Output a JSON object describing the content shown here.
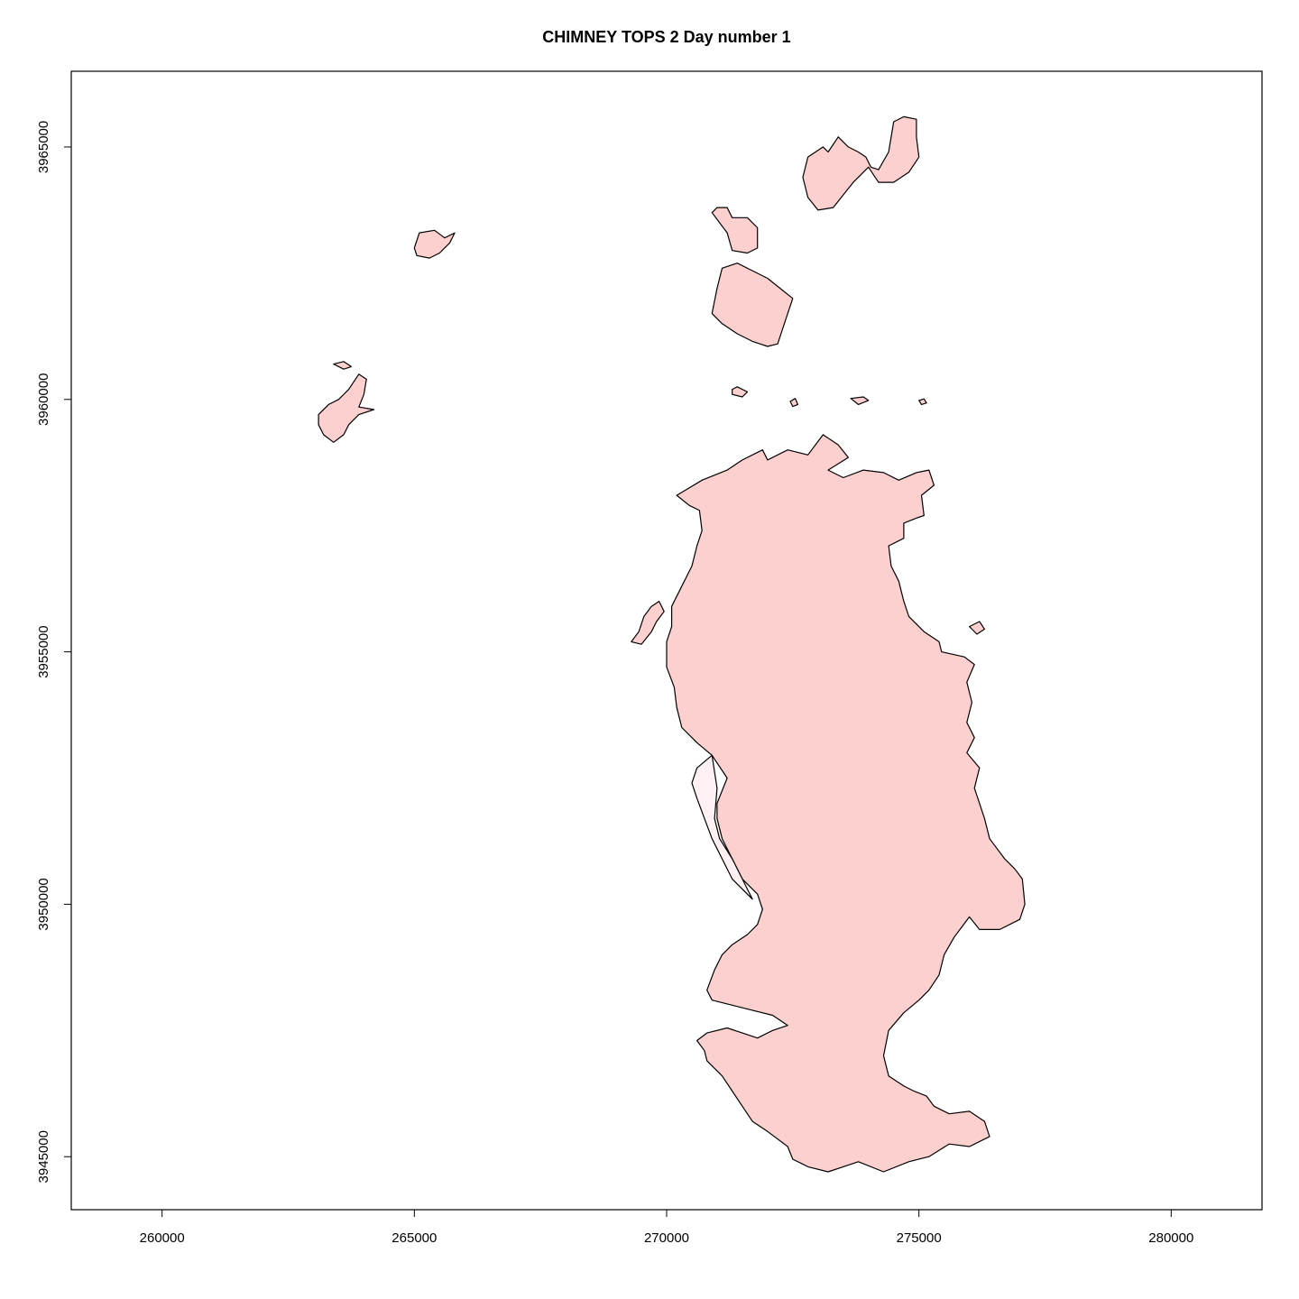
{
  "title": "CHIMNEY TOPS 2   Day number 1",
  "colors": {
    "fill": "#fdd0d0",
    "fill_light": "#fff1f1",
    "stroke": "#000000"
  },
  "chart_data": {
    "type": "map",
    "title": "CHIMNEY TOPS 2   Day number 1",
    "xlabel": "",
    "ylabel": "",
    "xlim": [
      258200,
      281800
    ],
    "ylim": [
      3943950,
      3966500
    ],
    "xticks": [
      260000,
      265000,
      270000,
      275000,
      280000
    ],
    "yticks": [
      3945000,
      3950000,
      3955000,
      3960000,
      3965000
    ],
    "xtick_labels": [
      "260000",
      "265000",
      "270000",
      "275000",
      "280000"
    ],
    "ytick_labels": [
      "3945000",
      "3950000",
      "3955000",
      "3960000",
      "3965000"
    ],
    "grid": false,
    "polygons": [
      {
        "name": "main-burn-area",
        "fill": "fill",
        "coords": [
          [
            270200,
            3958100
          ],
          [
            270700,
            3958400
          ],
          [
            271200,
            3958600
          ],
          [
            271500,
            3958800
          ],
          [
            271900,
            3959000
          ],
          [
            272000,
            3958800
          ],
          [
            272400,
            3959000
          ],
          [
            272800,
            3958900
          ],
          [
            273100,
            3959300
          ],
          [
            273400,
            3959100
          ],
          [
            273600,
            3958850
          ],
          [
            273200,
            3958600
          ],
          [
            273500,
            3958450
          ],
          [
            273900,
            3958600
          ],
          [
            274300,
            3958550
          ],
          [
            274600,
            3958400
          ],
          [
            274950,
            3958550
          ],
          [
            275200,
            3958600
          ],
          [
            275300,
            3958300
          ],
          [
            275050,
            3958100
          ],
          [
            275100,
            3957700
          ],
          [
            274950,
            3957650
          ],
          [
            274700,
            3957550
          ],
          [
            274700,
            3957250
          ],
          [
            274400,
            3957100
          ],
          [
            274450,
            3956700
          ],
          [
            274600,
            3956400
          ],
          [
            274700,
            3956000
          ],
          [
            274800,
            3955700
          ],
          [
            275100,
            3955400
          ],
          [
            275400,
            3955200
          ],
          [
            275450,
            3955000
          ],
          [
            275900,
            3954900
          ],
          [
            276100,
            3954750
          ],
          [
            275950,
            3954400
          ],
          [
            276050,
            3954000
          ],
          [
            275950,
            3953600
          ],
          [
            276100,
            3953300
          ],
          [
            275950,
            3953000
          ],
          [
            276200,
            3952700
          ],
          [
            276100,
            3952300
          ],
          [
            276300,
            3951700
          ],
          [
            276400,
            3951300
          ],
          [
            276700,
            3950900
          ],
          [
            276900,
            3950700
          ],
          [
            277050,
            3950500
          ],
          [
            277100,
            3950000
          ],
          [
            277000,
            3949700
          ],
          [
            276600,
            3949500
          ],
          [
            276200,
            3949500
          ],
          [
            276000,
            3949750
          ],
          [
            275850,
            3949550
          ],
          [
            275700,
            3949350
          ],
          [
            275500,
            3949000
          ],
          [
            275400,
            3948600
          ],
          [
            275200,
            3948300
          ],
          [
            275000,
            3948100
          ],
          [
            274700,
            3947850
          ],
          [
            274400,
            3947500
          ],
          [
            274300,
            3947000
          ],
          [
            274400,
            3946600
          ],
          [
            274700,
            3946400
          ],
          [
            274900,
            3946300
          ],
          [
            275150,
            3946200
          ],
          [
            275300,
            3946000
          ],
          [
            275600,
            3945850
          ],
          [
            276000,
            3945900
          ],
          [
            276300,
            3945700
          ],
          [
            276400,
            3945400
          ],
          [
            276000,
            3945200
          ],
          [
            275600,
            3945250
          ],
          [
            275200,
            3945000
          ],
          [
            274800,
            3944900
          ],
          [
            274300,
            3944700
          ],
          [
            273800,
            3944900
          ],
          [
            273500,
            3944800
          ],
          [
            273200,
            3944700
          ],
          [
            272800,
            3944800
          ],
          [
            272500,
            3944950
          ],
          [
            272400,
            3945200
          ],
          [
            272000,
            3945500
          ],
          [
            271700,
            3945700
          ],
          [
            271500,
            3946000
          ],
          [
            271300,
            3946300
          ],
          [
            271100,
            3946600
          ],
          [
            270800,
            3946900
          ],
          [
            270750,
            3947100
          ],
          [
            270600,
            3947300
          ],
          [
            270800,
            3947450
          ],
          [
            271200,
            3947550
          ],
          [
            271500,
            3947450
          ],
          [
            271800,
            3947350
          ],
          [
            272100,
            3947500
          ],
          [
            272400,
            3947600
          ],
          [
            272100,
            3947800
          ],
          [
            271700,
            3947900
          ],
          [
            271300,
            3948000
          ],
          [
            270900,
            3948100
          ],
          [
            270800,
            3948300
          ],
          [
            270950,
            3948700
          ],
          [
            271100,
            3949000
          ],
          [
            271300,
            3949200
          ],
          [
            271600,
            3949400
          ],
          [
            271800,
            3949600
          ],
          [
            271900,
            3949900
          ],
          [
            271800,
            3950200
          ],
          [
            271500,
            3950500
          ],
          [
            271300,
            3950900
          ],
          [
            271100,
            3951300
          ],
          [
            271000,
            3951700
          ],
          [
            271000,
            3952000
          ],
          [
            271200,
            3952500
          ],
          [
            270900,
            3952950
          ],
          [
            270600,
            3953200
          ],
          [
            270300,
            3953500
          ],
          [
            270200,
            3953900
          ],
          [
            270150,
            3954300
          ],
          [
            270000,
            3954700
          ],
          [
            270000,
            3955200
          ],
          [
            270100,
            3955500
          ],
          [
            270100,
            3955900
          ],
          [
            270300,
            3956300
          ],
          [
            270500,
            3956700
          ],
          [
            270600,
            3957100
          ],
          [
            270700,
            3957400
          ],
          [
            270650,
            3957800
          ],
          [
            270450,
            3957900
          ],
          [
            270200,
            3958100
          ]
        ]
      },
      {
        "name": "west-strip",
        "fill": "fill_light",
        "coords": [
          [
            270600,
            3952700
          ],
          [
            270900,
            3952950
          ],
          [
            271000,
            3952300
          ],
          [
            270950,
            3951700
          ],
          [
            271050,
            3951300
          ],
          [
            271300,
            3950900
          ],
          [
            271500,
            3950500
          ],
          [
            271700,
            3950100
          ],
          [
            271300,
            3950500
          ],
          [
            271100,
            3950900
          ],
          [
            270900,
            3951300
          ],
          [
            270750,
            3951700
          ],
          [
            270600,
            3952100
          ],
          [
            270500,
            3952400
          ],
          [
            270600,
            3952700
          ]
        ]
      },
      {
        "name": "north-tail",
        "fill": "fill",
        "coords": [
          [
            271300,
            3960200
          ],
          [
            271400,
            3960250
          ],
          [
            271600,
            3960150
          ],
          [
            271500,
            3960050
          ],
          [
            271300,
            3960100
          ],
          [
            271300,
            3960200
          ]
        ]
      },
      {
        "name": "north-islet-1",
        "fill": "fill",
        "coords": [
          [
            272450,
            3959960
          ],
          [
            272550,
            3960020
          ],
          [
            272600,
            3959900
          ],
          [
            272500,
            3959860
          ],
          [
            272450,
            3959960
          ]
        ]
      },
      {
        "name": "north-islet-2",
        "fill": "fill",
        "coords": [
          [
            273650,
            3960020
          ],
          [
            273900,
            3960050
          ],
          [
            274000,
            3959980
          ],
          [
            273800,
            3959900
          ],
          [
            273650,
            3960020
          ]
        ]
      },
      {
        "name": "north-islet-3",
        "fill": "fill",
        "coords": [
          [
            275000,
            3959980
          ],
          [
            275100,
            3960010
          ],
          [
            275150,
            3959930
          ],
          [
            275050,
            3959900
          ],
          [
            275000,
            3959980
          ]
        ]
      },
      {
        "name": "west-fringe-patch",
        "fill": "fill",
        "coords": [
          [
            269300,
            3955200
          ],
          [
            269450,
            3955400
          ],
          [
            269550,
            3955700
          ],
          [
            269700,
            3955900
          ],
          [
            269850,
            3956000
          ],
          [
            269950,
            3955800
          ],
          [
            269800,
            3955600
          ],
          [
            269700,
            3955400
          ],
          [
            269500,
            3955150
          ],
          [
            269300,
            3955200
          ]
        ]
      },
      {
        "name": "east-fringe-patch",
        "fill": "fill",
        "coords": [
          [
            276000,
            3955500
          ],
          [
            276200,
            3955600
          ],
          [
            276300,
            3955450
          ],
          [
            276150,
            3955350
          ],
          [
            276000,
            3955500
          ]
        ]
      },
      {
        "name": "chimney-tops-patch",
        "fill": "fill",
        "coords": [
          [
            270900,
            3961700
          ],
          [
            271000,
            3962200
          ],
          [
            271100,
            3962600
          ],
          [
            271400,
            3962700
          ],
          [
            271700,
            3962550
          ],
          [
            272000,
            3962400
          ],
          [
            272250,
            3962200
          ],
          [
            272500,
            3962000
          ],
          [
            272400,
            3961700
          ],
          [
            272300,
            3961400
          ],
          [
            272200,
            3961100
          ],
          [
            272000,
            3961050
          ],
          [
            271700,
            3961150
          ],
          [
            271400,
            3961300
          ],
          [
            271100,
            3961500
          ],
          [
            270900,
            3961700
          ]
        ]
      },
      {
        "name": "chimney-tops-upper",
        "fill": "fill",
        "coords": [
          [
            271000,
            3963800
          ],
          [
            271200,
            3963800
          ],
          [
            271300,
            3963600
          ],
          [
            271600,
            3963600
          ],
          [
            271800,
            3963400
          ],
          [
            271800,
            3963000
          ],
          [
            271600,
            3962900
          ],
          [
            271300,
            3962950
          ],
          [
            271200,
            3963300
          ],
          [
            270900,
            3963700
          ],
          [
            271000,
            3963800
          ]
        ]
      },
      {
        "name": "northeast-patch",
        "fill": "fill",
        "coords": [
          [
            272700,
            3964400
          ],
          [
            272800,
            3964800
          ],
          [
            273100,
            3965000
          ],
          [
            273200,
            3964900
          ],
          [
            273400,
            3965200
          ],
          [
            273600,
            3965000
          ],
          [
            273800,
            3964900
          ],
          [
            273950,
            3964800
          ],
          [
            274050,
            3964600
          ],
          [
            274200,
            3964550
          ],
          [
            274400,
            3964900
          ],
          [
            274500,
            3965500
          ],
          [
            274700,
            3965600
          ],
          [
            274950,
            3965550
          ],
          [
            274950,
            3965200
          ],
          [
            275000,
            3964800
          ],
          [
            274800,
            3964500
          ],
          [
            274500,
            3964300
          ],
          [
            274200,
            3964300
          ],
          [
            274000,
            3964600
          ],
          [
            273700,
            3964300
          ],
          [
            273300,
            3963800
          ],
          [
            273000,
            3963750
          ],
          [
            272800,
            3964000
          ],
          [
            272700,
            3964400
          ]
        ]
      },
      {
        "name": "far-west-patch",
        "fill": "fill",
        "coords": [
          [
            263100,
            3959700
          ],
          [
            263300,
            3959900
          ],
          [
            263500,
            3960000
          ],
          [
            263700,
            3960200
          ],
          [
            263900,
            3960500
          ],
          [
            264050,
            3960400
          ],
          [
            264000,
            3960100
          ],
          [
            263900,
            3959850
          ],
          [
            264200,
            3959800
          ],
          [
            263900,
            3959700
          ],
          [
            263700,
            3959500
          ],
          [
            263600,
            3959300
          ],
          [
            263400,
            3959150
          ],
          [
            263200,
            3959300
          ],
          [
            263100,
            3959500
          ],
          [
            263100,
            3959700
          ]
        ]
      },
      {
        "name": "far-west-islet",
        "fill": "fill",
        "coords": [
          [
            263400,
            3960700
          ],
          [
            263600,
            3960750
          ],
          [
            263750,
            3960650
          ],
          [
            263600,
            3960600
          ],
          [
            263400,
            3960700
          ]
        ]
      },
      {
        "name": "northwest-patch",
        "fill": "fill",
        "coords": [
          [
            265000,
            3963000
          ],
          [
            265100,
            3963300
          ],
          [
            265400,
            3963350
          ],
          [
            265600,
            3963200
          ],
          [
            265800,
            3963300
          ],
          [
            265700,
            3963100
          ],
          [
            265500,
            3962900
          ],
          [
            265300,
            3962800
          ],
          [
            265050,
            3962850
          ],
          [
            265000,
            3963000
          ]
        ]
      }
    ]
  }
}
